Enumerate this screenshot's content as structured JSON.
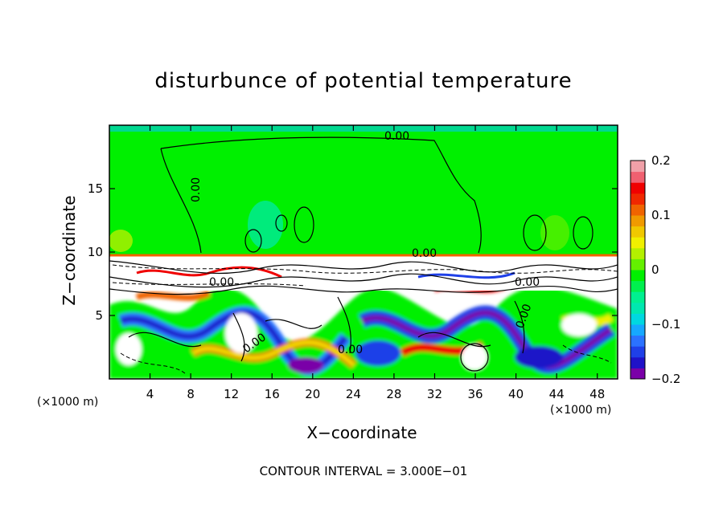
{
  "chart_data": {
    "type": "heatmap",
    "title": "disturbunce of potential temperature",
    "xlabel": "X−coordinate",
    "ylabel": "Z−coordinate",
    "x_unit": "(×1000 m)",
    "y_unit": "(×1000 m)",
    "footnote": "CONTOUR INTERVAL = 3.000E−01",
    "xlim": [
      0,
      50
    ],
    "ylim": [
      0,
      20
    ],
    "x_ticks": [
      4,
      8,
      12,
      16,
      20,
      24,
      28,
      32,
      36,
      40,
      44,
      48
    ],
    "y_ticks": [
      5,
      10,
      15
    ],
    "colorbar": {
      "range": [
        -0.2,
        0.2
      ],
      "tick_labels": [
        "0.2",
        "0.1",
        "0",
        "−0.1",
        "−0.2"
      ],
      "tick_values": [
        0.2,
        0.1,
        0,
        -0.1,
        -0.2
      ],
      "colors": [
        "#7a00a8",
        "#1f12c8",
        "#1f40e8",
        "#2b72ff",
        "#16a8ff",
        "#00d8e0",
        "#00e8b0",
        "#00f090",
        "#00f04e",
        "#00f000",
        "#64f000",
        "#b4f000",
        "#f0f000",
        "#f0c800",
        "#f09a00",
        "#f06400",
        "#f02800",
        "#f00000",
        "#f06070",
        "#f0a0a8"
      ]
    },
    "contour_labels": [
      "0.00",
      "0.00",
      "0.00",
      "0.00",
      "0.00",
      "0.00",
      "0.00",
      "0.00"
    ],
    "background_value": 0,
    "upper_region_value_approx": 0.0,
    "note_regions": "upper layer (z>10) near 0; turbulent layer below z~10 with values from -0.2 to 0.2"
  }
}
